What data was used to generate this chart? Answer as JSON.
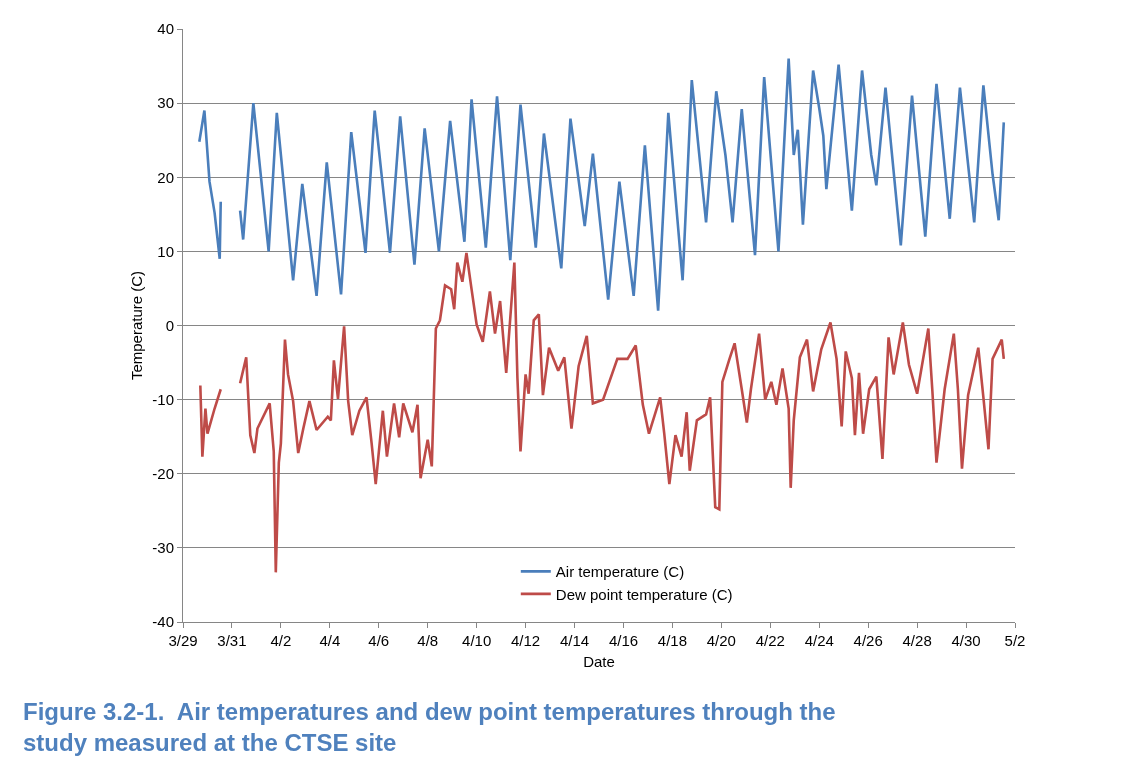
{
  "chart_data": {
    "type": "line",
    "title": "Figure 3.2-1.  Air temperatures and dew point temperatures through the study measured at the CTSE site",
    "xlabel": "Date",
    "ylabel": "Temperature (C)",
    "xlim": [
      "--03-29",
      "--05-02"
    ],
    "xticks": [
      {
        "value": "--03-29",
        "label": "3/29"
      },
      {
        "value": "--03-31",
        "label": "3/31"
      },
      {
        "value": "--04-02",
        "label": "4/2"
      },
      {
        "value": "--04-04",
        "label": "4/4"
      },
      {
        "value": "--04-06",
        "label": "4/6"
      },
      {
        "value": "--04-08",
        "label": "4/8"
      },
      {
        "value": "--04-10",
        "label": "4/10"
      },
      {
        "value": "--04-12",
        "label": "4/12"
      },
      {
        "value": "--04-14",
        "label": "4/14"
      },
      {
        "value": "--04-16",
        "label": "4/16"
      },
      {
        "value": "--04-18",
        "label": "4/18"
      },
      {
        "value": "--04-20",
        "label": "4/20"
      },
      {
        "value": "--04-22",
        "label": "4/22"
      },
      {
        "value": "--04-24",
        "label": "4/24"
      },
      {
        "value": "--04-26",
        "label": "4/26"
      },
      {
        "value": "--04-28",
        "label": "4/28"
      },
      {
        "value": "--04-30",
        "label": "4/30"
      },
      {
        "value": "--05-02",
        "label": "5/2"
      }
    ],
    "ylim": [
      -40,
      40
    ],
    "yticks": [
      -40,
      -30,
      -20,
      -10,
      0,
      10,
      20,
      30,
      40
    ],
    "grid": "y",
    "legend": "bottom",
    "marker": "none",
    "line_style": "solid",
    "series": [
      {
        "name": "Air temperature (C)",
        "color": "#4a7ebb",
        "x": [
          "--03-29T16:00",
          "--03-29T21:00",
          "--03-30T02:00",
          "--03-30T07:00",
          "--03-30T12:00",
          "--03-30T13:00",
          "--03-30T20:00",
          "--03-31T08:00",
          "--03-31T11:00",
          "--03-31T21:00",
          "--04-01T12:00",
          "--04-01T20:00",
          "--04-02T12:00",
          "--04-02T21:00",
          "--04-03T11:00",
          "--04-03T21:00",
          "--04-04T11:00",
          "--04-04T21:00",
          "--04-05T11:00",
          "--04-05T20:00",
          "--04-06T11:00",
          "--04-06T21:00",
          "--04-07T11:00",
          "--04-07T21:00",
          "--04-08T11:00",
          "--04-08T22:00",
          "--04-09T12:00",
          "--04-09T19:00",
          "--04-10T09:00",
          "--04-10T20:00",
          "--04-11T09:00",
          "--04-11T19:00",
          "--04-12T10:00",
          "--04-12T18:00",
          "--04-13T11:00",
          "--04-13T20:00",
          "--04-14T10:00",
          "--04-14T18:00",
          "--04-15T09:00",
          "--04-15T20:00",
          "--04-16T10:00",
          "--04-16T21:00",
          "--04-17T10:00",
          "--04-17T20:00",
          "--04-18T10:00",
          "--04-18T19:00",
          "--04-19T09:00",
          "--04-19T19:00",
          "--04-20T04:00",
          "--04-20T11:00",
          "--04-20T20:00",
          "--04-21T09:00",
          "--04-21T18:00",
          "--04-22T08:00",
          "--04-22T18:00",
          "--04-22T23:00",
          "--04-23T03:00",
          "--04-23T08:00",
          "--04-23T18:00",
          "--04-24T00:00",
          "--04-24T04:00",
          "--04-24T07:00",
          "--04-24T19:00",
          "--04-25T08:00",
          "--04-25T18:00",
          "--04-26T03:00",
          "--04-26T08:00",
          "--04-26T17:00",
          "--04-27T08:00",
          "--04-27T19:00",
          "--04-28T08:00",
          "--04-28T19:00",
          "--04-29T08:00",
          "--04-29T18:00",
          "--04-30T08:00",
          "--04-30T17:00",
          "--05-01T02:00",
          "--05-01T08:00",
          "--05-01T13:00"
        ],
        "values": [
          24.8,
          29,
          19.4,
          15.2,
          9,
          16.7,
          null,
          15.5,
          11.6,
          30,
          10,
          28.7,
          6.1,
          19.1,
          4,
          22,
          4.2,
          26.1,
          9.8,
          29,
          9.8,
          28.2,
          8.2,
          26.6,
          10,
          27.6,
          11.3,
          30.5,
          10.5,
          30.9,
          8.8,
          29.8,
          10.5,
          25.9,
          7.7,
          27.9,
          13.4,
          23.2,
          3.5,
          19.4,
          4,
          24.3,
          2,
          28.7,
          6.1,
          33.1,
          13.9,
          31.6,
          23,
          13.9,
          29.2,
          9.5,
          33.5,
          10,
          36,
          23,
          26.4,
          13.6,
          34.4,
          29.3,
          25.6,
          18.4,
          35.2,
          15.5,
          34.4,
          23,
          18.9,
          32.1,
          10.8,
          31,
          12,
          32.6,
          14.4,
          32.1,
          13.9,
          32.4,
          20.4,
          14.2,
          27.4
        ]
      },
      {
        "name": "Dew point temperature (C)",
        "color": "#be4b48",
        "x": [
          "--03-29T17:00",
          "--03-29T19:00",
          "--03-29T22:00",
          "--03-30T00:00",
          "--03-30T07:00",
          "--03-30T13:00",
          "--03-30T20:00",
          "--03-31T08:00",
          "--03-31T14:00",
          "--03-31T18:00",
          "--03-31T22:00",
          "--04-01T01:00",
          "--04-01T13:00",
          "--04-01T17:00",
          "--04-01T19:00",
          "--04-01T22:00",
          "--04-02T00:00",
          "--04-02T04:00",
          "--04-02T07:00",
          "--04-02T12:00",
          "--04-02T17:00",
          "--04-02T22:00",
          "--04-03T04:00",
          "--04-03T11:00",
          "--04-03T22:00",
          "--04-04T01:00",
          "--04-04T04:00",
          "--04-04T08:00",
          "--04-04T14:00",
          "--04-04T18:00",
          "--04-04T22:00",
          "--04-05T05:00",
          "--04-05T12:00",
          "--04-05T17:00",
          "--04-05T21:00",
          "--04-06T04:00",
          "--04-06T08:00",
          "--04-06T15:00",
          "--04-06T20:00",
          "--04-07T00:00",
          "--04-07T09:00",
          "--04-07T14:00",
          "--04-07T17:00",
          "--04-08T00:00",
          "--04-08T04:00",
          "--04-08T08:00",
          "--04-08T12:00",
          "--04-08T17:00",
          "--04-08T23:00",
          "--04-09T02:00",
          "--04-09T05:00",
          "--04-09T10:00",
          "--04-09T14:00",
          "--04-09T19:00",
          "--04-10T00:00",
          "--04-10T06:00",
          "--04-10T13:00",
          "--04-10T18:00",
          "--04-10T23:00",
          "--04-11T05:00",
          "--04-11T13:00",
          "--04-11T16:00",
          "--04-11T19:00",
          "--04-12T00:00",
          "--04-12T03:00",
          "--04-12T08:00",
          "--04-12T13:00",
          "--04-12T17:00",
          "--04-12T23:00",
          "--04-13T08:00",
          "--04-13T14:00",
          "--04-13T21:00",
          "--04-14T04:00",
          "--04-14T12:00",
          "--04-14T18:00",
          "--04-15T04:00",
          "--04-15T18:00",
          "--04-16T04:00",
          "--04-16T12:00",
          "--04-16T19:00",
          "--04-17T01:00",
          "--04-17T12:00",
          "--04-17T16:00",
          "--04-17T21:00",
          "--04-18T03:00",
          "--04-18T09:00",
          "--04-18T14:00",
          "--04-18T17:00",
          "--04-19T00:00",
          "--04-19T09:00",
          "--04-19T13:00",
          "--04-19T18:00",
          "--04-19T22:00",
          "--04-20T01:00",
          "--04-20T08:00",
          "--04-20T13:00",
          "--04-20T20:00",
          "--04-21T01:00",
          "--04-21T05:00",
          "--04-21T13:00",
          "--04-21T19:00",
          "--04-22T01:00",
          "--04-22T06:00",
          "--04-22T12:00",
          "--04-22T18:00",
          "--04-22T20:00",
          "--04-22T23:00",
          "--04-23T05:00",
          "--04-23T12:00",
          "--04-23T18:00",
          "--04-24T02:00",
          "--04-24T11:00",
          "--04-24T17:00",
          "--04-24T22:00",
          "--04-25T02:00",
          "--04-25T08:00",
          "--04-25T11:00",
          "--04-25T15:00",
          "--04-25T19:00",
          "--04-26T01:00",
          "--04-26T08:00",
          "--04-26T14:00",
          "--04-26T20:00",
          "--04-27T01:00",
          "--04-27T10:00",
          "--04-27T16:00",
          "--04-28T00:00",
          "--04-28T11:00",
          "--04-28T15:00",
          "--04-28T19:00",
          "--04-29T03:00",
          "--04-29T12:00",
          "--04-29T16:00",
          "--04-29T20:00",
          "--04-30T02:00",
          "--04-30T12:00",
          "--04-30T17:00",
          "--04-30T22:00",
          "--05-01T02:00",
          "--05-01T11:00",
          "--05-01T13:00"
        ],
        "values": [
          -8.1,
          -17.7,
          -11.2,
          -14.6,
          -11.2,
          -8.6,
          null,
          -7.8,
          -4.3,
          -14.8,
          -17.2,
          -13.9,
          -10.5,
          -17,
          -33.3,
          -18.5,
          -15.9,
          -1.9,
          -6.6,
          -10.2,
          -17.2,
          -13.9,
          -10.2,
          -14.1,
          -12.3,
          -12.8,
          -4.7,
          -9.9,
          -0.1,
          -10.2,
          -14.8,
          -11.5,
          -9.7,
          -15.9,
          -21.4,
          -11.5,
          -17.7,
          -10.5,
          -15.1,
          -10.5,
          -14.4,
          -10.7,
          -20.6,
          -15.4,
          -19,
          -0.4,
          0.7,
          5.4,
          4.9,
          2.2,
          8.5,
          5.9,
          9.8,
          4.9,
          0.1,
          -2.2,
          4.6,
          -1.1,
          3.3,
          -6.4,
          8.5,
          -7.1,
          -17,
          -6.6,
          -9.2,
          0.7,
          1.5,
          -9.4,
          -3,
          -6.1,
          -4.3,
          -13.9,
          -5.5,
          -1.4,
          -10.5,
          -10,
          -4.5,
          -4.5,
          -2.7,
          -10.7,
          -14.6,
          -9.7,
          -14.6,
          -21.4,
          -14.8,
          -17.7,
          -11.7,
          -19.6,
          -12.8,
          -12,
          -9.7,
          -24.5,
          -24.8,
          -7.6,
          -4.5,
          -2.4,
          -8.6,
          -13.1,
          -8.6,
          -1.1,
          -10,
          -7.6,
          -10.7,
          -5.8,
          -11.2,
          -21.9,
          -12.8,
          -4.3,
          -1.9,
          -8.9,
          -3.2,
          0.4,
          -4.5,
          -13.6,
          -3.5,
          -7.1,
          -14.8,
          -6.4,
          -14.6,
          -8.6,
          -6.9,
          -18,
          -1.6,
          -6.6,
          0.4,
          -5.3,
          -9.2,
          -0.4,
          -8.9,
          -18.5,
          -8.6,
          -1.1,
          -8.6,
          -19.3,
          -9.4,
          -3,
          -9.7,
          -16.7,
          -4.5,
          -1.9,
          -4.5
        ]
      }
    ]
  }
}
